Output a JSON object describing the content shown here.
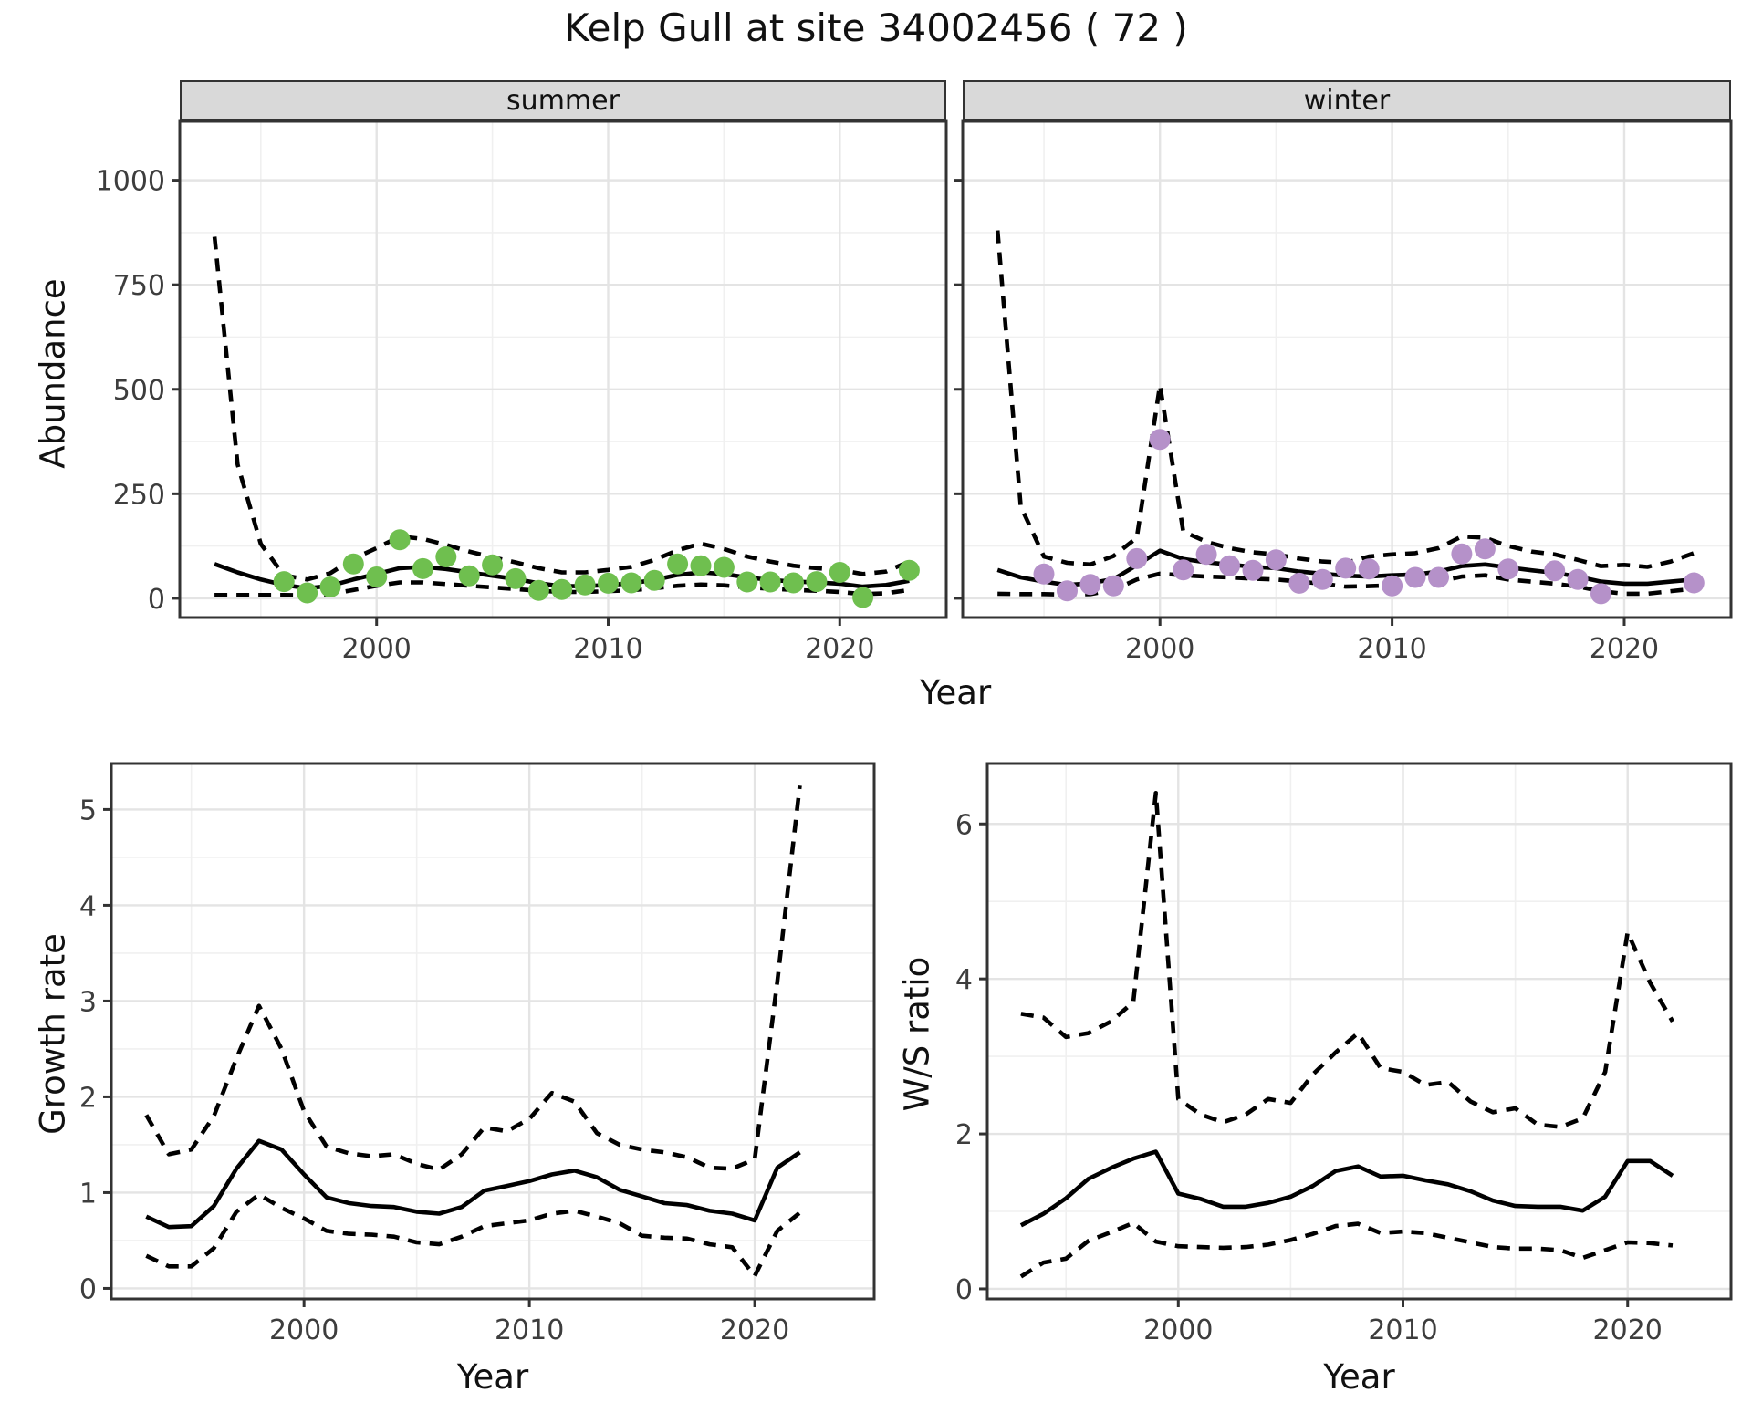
{
  "title": "Kelp Gull at site 34002456 ( 72 )",
  "colors": {
    "summer_point": "#6fbf4f",
    "winter_point": "#b591c9",
    "line": "#000000",
    "grid_major": "#e4e4e4",
    "grid_minor": "#f0f0f0",
    "panel_border": "#333333",
    "strip_bg": "#d9d9d9",
    "tick_text": "#3d3d3d"
  },
  "axis_titles": {
    "abundance": "Abundance",
    "year_top": "Year",
    "growth": "Growth rate",
    "ws": "W/S ratio",
    "year_bl": "Year",
    "year_br": "Year"
  },
  "chart_data": [
    {
      "id": "abundance-summer",
      "type": "line",
      "facet_label": "summer",
      "ylabel": "Abundance",
      "xlabel": "Year",
      "grid": true,
      "legend": "none",
      "xlim": [
        1991.5,
        2024.6
      ],
      "ylim": [
        -46,
        1141
      ],
      "xticks": [
        2000,
        2010,
        2020
      ],
      "xminor": [
        1995,
        2005,
        2015
      ],
      "yticks": [
        0,
        250,
        500,
        750,
        1000
      ],
      "yminor": [
        125,
        375,
        625,
        875
      ],
      "x": [
        1993,
        1994,
        1995,
        1996,
        1997,
        1998,
        1999,
        2000,
        2001,
        2002,
        2003,
        2004,
        2005,
        2006,
        2007,
        2008,
        2009,
        2010,
        2011,
        2012,
        2013,
        2014,
        2015,
        2016,
        2017,
        2018,
        2019,
        2020,
        2021,
        2022,
        2023
      ],
      "series": [
        {
          "name": "mean",
          "style": "solid",
          "values": [
            82,
            62,
            45,
            32,
            24,
            30,
            45,
            58,
            72,
            75,
            70,
            62,
            54,
            46,
            36,
            29,
            29,
            32,
            36,
            44,
            56,
            62,
            58,
            50,
            44,
            40,
            38,
            35,
            28,
            32,
            42
          ]
        },
        {
          "name": "ci_upper",
          "style": "dashed",
          "values": [
            865,
            320,
            130,
            55,
            45,
            60,
            95,
            120,
            148,
            142,
            128,
            112,
            98,
            86,
            72,
            62,
            62,
            68,
            75,
            92,
            115,
            131,
            118,
            100,
            88,
            78,
            72,
            68,
            58,
            64,
            88
          ]
        },
        {
          "name": "ci_lower",
          "style": "dashed",
          "values": [
            8,
            8,
            8,
            8,
            7,
            10,
            20,
            30,
            38,
            38,
            34,
            30,
            26,
            22,
            18,
            15,
            15,
            17,
            19,
            24,
            30,
            33,
            31,
            26,
            23,
            20,
            18,
            15,
            10,
            12,
            20
          ]
        }
      ],
      "points": {
        "name": "observed_counts",
        "color_key": "summer_point",
        "x": [
          1996,
          1997,
          1998,
          1999,
          2000,
          2001,
          2002,
          2003,
          2004,
          2005,
          2006,
          2007,
          2008,
          2009,
          2010,
          2011,
          2012,
          2013,
          2014,
          2015,
          2016,
          2017,
          2018,
          2019,
          2020,
          2021,
          2023
        ],
        "y": [
          40,
          13,
          27,
          82,
          51,
          140,
          71,
          99,
          54,
          80,
          47,
          19,
          21,
          32,
          36,
          37,
          43,
          82,
          78,
          74,
          39,
          39,
          37,
          40,
          62,
          2,
          67
        ]
      }
    },
    {
      "id": "abundance-winter",
      "type": "line",
      "facet_label": "winter",
      "ylabel": "Abundance",
      "xlabel": "Year",
      "grid": true,
      "legend": "none",
      "xlim": [
        1991.5,
        2024.6
      ],
      "ylim": [
        -46,
        1141
      ],
      "xticks": [
        2000,
        2010,
        2020
      ],
      "xminor": [
        1995,
        2005,
        2015
      ],
      "yticks": [
        0,
        250,
        500,
        750,
        1000
      ],
      "yminor": [
        125,
        375,
        625,
        875
      ],
      "hide_ytick_labels": true,
      "x": [
        1993,
        1994,
        1995,
        1996,
        1997,
        1998,
        1999,
        2000,
        2001,
        2002,
        2003,
        2004,
        2005,
        2006,
        2007,
        2008,
        2009,
        2010,
        2011,
        2012,
        2013,
        2014,
        2015,
        2016,
        2017,
        2018,
        2019,
        2020,
        2021,
        2022,
        2023
      ],
      "series": [
        {
          "name": "mean",
          "style": "solid",
          "values": [
            68,
            50,
            40,
            32,
            36,
            46,
            79,
            114,
            94,
            86,
            81,
            75,
            72,
            64,
            59,
            54,
            52,
            55,
            57,
            64,
            77,
            81,
            74,
            67,
            61,
            52,
            40,
            35,
            35,
            40,
            45
          ]
        },
        {
          "name": "ci_upper",
          "style": "dashed",
          "values": [
            880,
            220,
            100,
            85,
            81,
            101,
            145,
            510,
            160,
            135,
            120,
            110,
            105,
            95,
            88,
            85,
            100,
            105,
            108,
            120,
            148,
            145,
            125,
            112,
            105,
            92,
            77,
            80,
            75,
            88,
            108
          ]
        },
        {
          "name": "ci_lower",
          "style": "dashed",
          "values": [
            11,
            10,
            10,
            9,
            10,
            20,
            45,
            59,
            55,
            52,
            50,
            47,
            45,
            40,
            35,
            28,
            29,
            31,
            35,
            40,
            52,
            55,
            45,
            40,
            35,
            28,
            17,
            11,
            11,
            17,
            23
          ]
        }
      ],
      "points": {
        "name": "observed_counts",
        "color_key": "winter_point",
        "x": [
          1995,
          1996,
          1997,
          1998,
          1999,
          2000,
          2001,
          2002,
          2003,
          2004,
          2005,
          2006,
          2007,
          2008,
          2009,
          2010,
          2011,
          2012,
          2013,
          2014,
          2015,
          2017,
          2018,
          2019,
          2023
        ],
        "y": [
          58,
          18,
          33,
          30,
          95,
          380,
          68,
          105,
          78,
          67,
          92,
          36,
          45,
          72,
          70,
          30,
          50,
          50,
          106,
          118,
          70,
          66,
          45,
          11,
          37
        ]
      }
    },
    {
      "id": "growth-rate",
      "type": "line",
      "facet_label": "",
      "ylabel": "Growth rate",
      "xlabel": "Year",
      "grid": true,
      "legend": "none",
      "xlim": [
        1991.45,
        2025.3
      ],
      "ylim": [
        -0.11,
        5.48
      ],
      "xticks": [
        2000,
        2010,
        2020
      ],
      "xminor": [
        1995,
        2005,
        2015
      ],
      "yticks": [
        0,
        1,
        2,
        3,
        4,
        5
      ],
      "yminor": [
        0.5,
        1.5,
        2.5,
        3.5,
        4.5
      ],
      "x": [
        1993,
        1994,
        1995,
        1996,
        1997,
        1998,
        1999,
        2000,
        2001,
        2002,
        2003,
        2004,
        2005,
        2006,
        2007,
        2008,
        2009,
        2010,
        2011,
        2012,
        2013,
        2014,
        2015,
        2016,
        2017,
        2018,
        2019,
        2020,
        2021,
        2022
      ],
      "series": [
        {
          "name": "mean",
          "style": "solid",
          "values": [
            0.75,
            0.64,
            0.65,
            0.86,
            1.25,
            1.54,
            1.45,
            1.19,
            0.95,
            0.89,
            0.86,
            0.85,
            0.8,
            0.78,
            0.85,
            1.02,
            1.07,
            1.12,
            1.19,
            1.23,
            1.16,
            1.03,
            0.96,
            0.89,
            0.87,
            0.81,
            0.78,
            0.71,
            1.26,
            1.42
          ]
        },
        {
          "name": "ci_upper",
          "style": "dashed",
          "values": [
            1.81,
            1.4,
            1.45,
            1.8,
            2.4,
            2.95,
            2.5,
            1.85,
            1.48,
            1.41,
            1.38,
            1.4,
            1.3,
            1.24,
            1.4,
            1.68,
            1.64,
            1.77,
            2.04,
            1.95,
            1.62,
            1.5,
            1.45,
            1.42,
            1.37,
            1.26,
            1.25,
            1.35,
            3.2,
            5.25
          ]
        },
        {
          "name": "ci_lower",
          "style": "dashed",
          "values": [
            0.34,
            0.23,
            0.23,
            0.42,
            0.8,
            0.98,
            0.84,
            0.73,
            0.6,
            0.57,
            0.56,
            0.54,
            0.48,
            0.46,
            0.54,
            0.65,
            0.68,
            0.71,
            0.78,
            0.81,
            0.75,
            0.68,
            0.55,
            0.53,
            0.52,
            0.46,
            0.43,
            0.13,
            0.6,
            0.79
          ]
        }
      ]
    },
    {
      "id": "ws-ratio",
      "type": "line",
      "facet_label": "",
      "ylabel": "W/S ratio",
      "xlabel": "Year",
      "grid": true,
      "legend": "none",
      "xlim": [
        1991.5,
        2024.6
      ],
      "ylim": [
        -0.13,
        6.78
      ],
      "xticks": [
        2000,
        2010,
        2020
      ],
      "xminor": [
        1995,
        2005,
        2015
      ],
      "yticks": [
        0,
        2,
        4,
        6
      ],
      "yminor": [
        1,
        3,
        5
      ],
      "x": [
        1993,
        1994,
        1995,
        1996,
        1997,
        1998,
        1999,
        2000,
        2001,
        2002,
        2003,
        2004,
        2005,
        2006,
        2007,
        2008,
        2009,
        2010,
        2011,
        2012,
        2013,
        2014,
        2015,
        2016,
        2017,
        2018,
        2019,
        2020,
        2021,
        2022
      ],
      "series": [
        {
          "name": "mean",
          "style": "solid",
          "values": [
            0.82,
            0.97,
            1.17,
            1.42,
            1.56,
            1.68,
            1.77,
            1.23,
            1.16,
            1.06,
            1.06,
            1.11,
            1.19,
            1.33,
            1.52,
            1.58,
            1.45,
            1.46,
            1.4,
            1.35,
            1.26,
            1.14,
            1.07,
            1.06,
            1.06,
            1.01,
            1.19,
            1.65,
            1.65,
            1.46
          ]
        },
        {
          "name": "ci_upper",
          "style": "dashed",
          "values": [
            3.55,
            3.5,
            3.25,
            3.3,
            3.45,
            3.7,
            6.4,
            2.45,
            2.25,
            2.15,
            2.25,
            2.45,
            2.4,
            2.77,
            3.05,
            3.3,
            2.85,
            2.8,
            2.63,
            2.67,
            2.42,
            2.28,
            2.33,
            2.12,
            2.09,
            2.2,
            2.8,
            4.6,
            3.95,
            3.45
          ]
        },
        {
          "name": "ci_lower",
          "style": "dashed",
          "values": [
            0.16,
            0.34,
            0.39,
            0.62,
            0.73,
            0.85,
            0.61,
            0.55,
            0.54,
            0.53,
            0.54,
            0.57,
            0.63,
            0.71,
            0.81,
            0.84,
            0.72,
            0.74,
            0.72,
            0.66,
            0.6,
            0.54,
            0.52,
            0.52,
            0.5,
            0.4,
            0.5,
            0.6,
            0.59,
            0.56
          ]
        }
      ]
    }
  ]
}
